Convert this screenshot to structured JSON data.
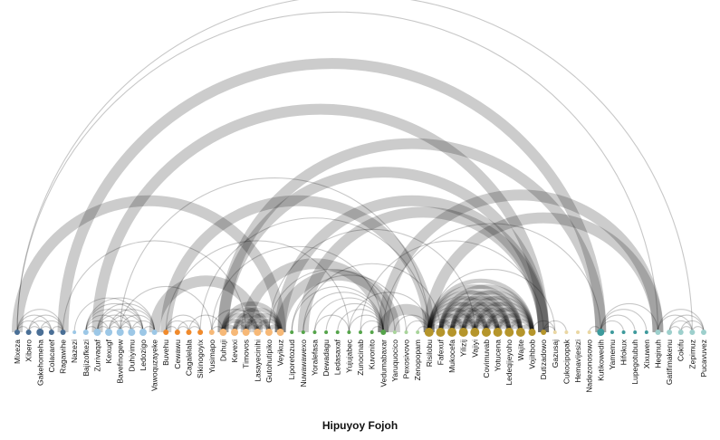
{
  "caption": "Hipuyoy Fojoh",
  "colors": {
    "link": "#000000",
    "groups": [
      "#4a6f96",
      "#9cc7e6",
      "#f08a2c",
      "#f6b877",
      "#55a44a",
      "#a8d49a",
      "#b5952b",
      "#ead7a3",
      "#3d9a9c",
      "#9dcfcc"
    ]
  },
  "nodes": [
    {
      "name": "Mixeza",
      "group": 0,
      "size": 3
    },
    {
      "name": "Xibero",
      "group": 0,
      "size": 3
    },
    {
      "name": "Gakehomeha",
      "group": 0,
      "size": 4
    },
    {
      "name": "Colacaref",
      "group": 0,
      "size": 3
    },
    {
      "name": "Ragawihe",
      "group": 0,
      "size": 3
    },
    {
      "name": "Nazezi",
      "group": 1,
      "size": 2
    },
    {
      "name": "Bajizofkezi",
      "group": 1,
      "size": 3
    },
    {
      "name": "Zurivaqaf",
      "group": 1,
      "size": 4
    },
    {
      "name": "Kexugf",
      "group": 1,
      "size": 4
    },
    {
      "name": "Bavefinogew",
      "group": 1,
      "size": 4
    },
    {
      "name": "Duhiyimu",
      "group": 1,
      "size": 4
    },
    {
      "name": "Ledozigo",
      "group": 1,
      "size": 4
    },
    {
      "name": "Vawoquzayeke",
      "group": 1,
      "size": 3
    },
    {
      "name": "Buvehu",
      "group": 2,
      "size": 3
    },
    {
      "name": "Cewawu",
      "group": 2,
      "size": 3
    },
    {
      "name": "Cagalelala",
      "group": 2,
      "size": 3
    },
    {
      "name": "Sikinogoyix",
      "group": 2,
      "size": 3
    },
    {
      "name": "Yusimapo",
      "group": 3,
      "size": 3
    },
    {
      "name": "Duhuji",
      "group": 3,
      "size": 4
    },
    {
      "name": "Kevexi",
      "group": 3,
      "size": 4
    },
    {
      "name": "Timovos",
      "group": 3,
      "size": 4
    },
    {
      "name": "Lasayecinihi",
      "group": 3,
      "size": 4
    },
    {
      "name": "Gutohutipiko",
      "group": 3,
      "size": 4
    },
    {
      "name": "Veyikuz",
      "group": 3,
      "size": 4
    },
    {
      "name": "Liporetozud",
      "group": 4,
      "size": 2
    },
    {
      "name": "Nuwawawexo",
      "group": 4,
      "size": 2
    },
    {
      "name": "Yoralefasa",
      "group": 4,
      "size": 2
    },
    {
      "name": "Dewadagu",
      "group": 4,
      "size": 2
    },
    {
      "name": "Ledasaxaf",
      "group": 4,
      "size": 2
    },
    {
      "name": "Yujujabec",
      "group": 4,
      "size": 2
    },
    {
      "name": "Zunocinab",
      "group": 4,
      "size": 2
    },
    {
      "name": "Kuvonito",
      "group": 4,
      "size": 2
    },
    {
      "name": "Vedumabaxar",
      "group": 4,
      "size": 3
    },
    {
      "name": "Yaruquocico",
      "group": 5,
      "size": 2
    },
    {
      "name": "Pexosivovo",
      "group": 5,
      "size": 2
    },
    {
      "name": "Zenopopam",
      "group": 5,
      "size": 2
    },
    {
      "name": "Risilobu",
      "group": 6,
      "size": 5
    },
    {
      "name": "Fafexuf",
      "group": 6,
      "size": 5
    },
    {
      "name": "Mukocefa",
      "group": 6,
      "size": 5
    },
    {
      "name": "Yilizij",
      "group": 6,
      "size": 5
    },
    {
      "name": "Vajiyi",
      "group": 6,
      "size": 5
    },
    {
      "name": "Covimuvab",
      "group": 6,
      "size": 5
    },
    {
      "name": "Yotucena",
      "group": 6,
      "size": 5
    },
    {
      "name": "Ledeqijeyoho",
      "group": 6,
      "size": 5
    },
    {
      "name": "Wajite",
      "group": 6,
      "size": 5
    },
    {
      "name": "Vojihbob",
      "group": 6,
      "size": 4
    },
    {
      "name": "Dutizadowo",
      "group": 6,
      "size": 3
    },
    {
      "name": "Gazusaj",
      "group": 7,
      "size": 2
    },
    {
      "name": "Cukocipopak",
      "group": 7,
      "size": 2
    },
    {
      "name": "Hemavijesizi",
      "group": 7,
      "size": 2
    },
    {
      "name": "Nadezonosowo",
      "group": 7,
      "size": 2
    },
    {
      "name": "Kutikowedih",
      "group": 8,
      "size": 4
    },
    {
      "name": "Yamemu",
      "group": 8,
      "size": 2
    },
    {
      "name": "Hifokux",
      "group": 8,
      "size": 2
    },
    {
      "name": "Lupegotubuh",
      "group": 8,
      "size": 2
    },
    {
      "name": "Xixuwen",
      "group": 8,
      "size": 2
    },
    {
      "name": "Heqinuh",
      "group": 9,
      "size": 3
    },
    {
      "name": "Gatifimakenu",
      "group": 9,
      "size": 3
    },
    {
      "name": "Cokifu",
      "group": 9,
      "size": 3
    },
    {
      "name": "Zepimuz",
      "group": 9,
      "size": 3
    },
    {
      "name": "Pucavuvez",
      "group": 9,
      "size": 3
    }
  ],
  "links": [
    {
      "source": 0,
      "target": 1,
      "value": 1
    },
    {
      "source": 0,
      "target": 2,
      "value": 1
    },
    {
      "source": 0,
      "target": 3,
      "value": 1
    },
    {
      "source": 0,
      "target": 4,
      "value": 1
    },
    {
      "source": 1,
      "target": 2,
      "value": 1
    },
    {
      "source": 1,
      "target": 3,
      "value": 1
    },
    {
      "source": 1,
      "target": 4,
      "value": 1
    },
    {
      "source": 2,
      "target": 3,
      "value": 1
    },
    {
      "source": 2,
      "target": 4,
      "value": 1
    },
    {
      "source": 3,
      "target": 4,
      "value": 1
    },
    {
      "source": 6,
      "target": 7,
      "value": 1
    },
    {
      "source": 6,
      "target": 8,
      "value": 1
    },
    {
      "source": 6,
      "target": 9,
      "value": 1
    },
    {
      "source": 6,
      "target": 10,
      "value": 1
    },
    {
      "source": 6,
      "target": 11,
      "value": 1
    },
    {
      "source": 6,
      "target": 12,
      "value": 1
    },
    {
      "source": 7,
      "target": 8,
      "value": 1
    },
    {
      "source": 7,
      "target": 9,
      "value": 1
    },
    {
      "source": 7,
      "target": 10,
      "value": 1
    },
    {
      "source": 7,
      "target": 11,
      "value": 1
    },
    {
      "source": 7,
      "target": 12,
      "value": 1
    },
    {
      "source": 8,
      "target": 9,
      "value": 1
    },
    {
      "source": 8,
      "target": 10,
      "value": 1
    },
    {
      "source": 8,
      "target": 11,
      "value": 1
    },
    {
      "source": 8,
      "target": 12,
      "value": 1
    },
    {
      "source": 9,
      "target": 10,
      "value": 1
    },
    {
      "source": 9,
      "target": 11,
      "value": 1
    },
    {
      "source": 9,
      "target": 12,
      "value": 1
    },
    {
      "source": 10,
      "target": 11,
      "value": 1
    },
    {
      "source": 10,
      "target": 12,
      "value": 1
    },
    {
      "source": 11,
      "target": 12,
      "value": 1
    },
    {
      "source": 5,
      "target": 11,
      "value": 1
    },
    {
      "source": 13,
      "target": 14,
      "value": 1
    },
    {
      "source": 13,
      "target": 15,
      "value": 1
    },
    {
      "source": 13,
      "target": 16,
      "value": 1
    },
    {
      "source": 14,
      "target": 15,
      "value": 1
    },
    {
      "source": 14,
      "target": 16,
      "value": 1
    },
    {
      "source": 15,
      "target": 16,
      "value": 1
    },
    {
      "source": 18,
      "target": 19,
      "value": 2
    },
    {
      "source": 18,
      "target": 20,
      "value": 2
    },
    {
      "source": 18,
      "target": 21,
      "value": 2
    },
    {
      "source": 18,
      "target": 22,
      "value": 2
    },
    {
      "source": 18,
      "target": 23,
      "value": 2
    },
    {
      "source": 19,
      "target": 20,
      "value": 2
    },
    {
      "source": 19,
      "target": 21,
      "value": 2
    },
    {
      "source": 19,
      "target": 22,
      "value": 2
    },
    {
      "source": 19,
      "target": 23,
      "value": 2
    },
    {
      "source": 20,
      "target": 21,
      "value": 2
    },
    {
      "source": 20,
      "target": 22,
      "value": 2
    },
    {
      "source": 20,
      "target": 23,
      "value": 2
    },
    {
      "source": 21,
      "target": 22,
      "value": 2
    },
    {
      "source": 21,
      "target": 23,
      "value": 2
    },
    {
      "source": 22,
      "target": 23,
      "value": 2
    },
    {
      "source": 17,
      "target": 18,
      "value": 1
    },
    {
      "source": 17,
      "target": 21,
      "value": 1
    },
    {
      "source": 24,
      "target": 32,
      "value": 1
    },
    {
      "source": 25,
      "target": 32,
      "value": 1
    },
    {
      "source": 26,
      "target": 32,
      "value": 1
    },
    {
      "source": 27,
      "target": 32,
      "value": 1
    },
    {
      "source": 28,
      "target": 32,
      "value": 1
    },
    {
      "source": 29,
      "target": 32,
      "value": 1
    },
    {
      "source": 30,
      "target": 32,
      "value": 1
    },
    {
      "source": 31,
      "target": 32,
      "value": 1
    },
    {
      "source": 26,
      "target": 29,
      "value": 1
    },
    {
      "source": 32,
      "target": 36,
      "value": 5
    },
    {
      "source": 33,
      "target": 36,
      "value": 1
    },
    {
      "source": 34,
      "target": 36,
      "value": 1
    },
    {
      "source": 35,
      "target": 36,
      "value": 1
    },
    {
      "source": 36,
      "target": 37,
      "value": 2
    },
    {
      "source": 36,
      "target": 38,
      "value": 2
    },
    {
      "source": 36,
      "target": 39,
      "value": 2
    },
    {
      "source": 36,
      "target": 40,
      "value": 2
    },
    {
      "source": 36,
      "target": 41,
      "value": 2
    },
    {
      "source": 36,
      "target": 42,
      "value": 2
    },
    {
      "source": 36,
      "target": 43,
      "value": 2
    },
    {
      "source": 36,
      "target": 44,
      "value": 2
    },
    {
      "source": 36,
      "target": 45,
      "value": 2
    },
    {
      "source": 37,
      "target": 38,
      "value": 2
    },
    {
      "source": 37,
      "target": 39,
      "value": 2
    },
    {
      "source": 37,
      "target": 40,
      "value": 2
    },
    {
      "source": 37,
      "target": 41,
      "value": 2
    },
    {
      "source": 37,
      "target": 42,
      "value": 2
    },
    {
      "source": 37,
      "target": 43,
      "value": 2
    },
    {
      "source": 37,
      "target": 44,
      "value": 2
    },
    {
      "source": 37,
      "target": 45,
      "value": 2
    },
    {
      "source": 38,
      "target": 39,
      "value": 2
    },
    {
      "source": 38,
      "target": 40,
      "value": 2
    },
    {
      "source": 38,
      "target": 41,
      "value": 2
    },
    {
      "source": 38,
      "target": 42,
      "value": 2
    },
    {
      "source": 38,
      "target": 43,
      "value": 2
    },
    {
      "source": 38,
      "target": 44,
      "value": 2
    },
    {
      "source": 38,
      "target": 45,
      "value": 2
    },
    {
      "source": 39,
      "target": 40,
      "value": 2
    },
    {
      "source": 39,
      "target": 41,
      "value": 2
    },
    {
      "source": 39,
      "target": 42,
      "value": 2
    },
    {
      "source": 39,
      "target": 43,
      "value": 2
    },
    {
      "source": 39,
      "target": 44,
      "value": 2
    },
    {
      "source": 39,
      "target": 45,
      "value": 2
    },
    {
      "source": 40,
      "target": 41,
      "value": 2
    },
    {
      "source": 40,
      "target": 42,
      "value": 2
    },
    {
      "source": 40,
      "target": 43,
      "value": 2
    },
    {
      "source": 40,
      "target": 44,
      "value": 2
    },
    {
      "source": 40,
      "target": 45,
      "value": 2
    },
    {
      "source": 41,
      "target": 42,
      "value": 2
    },
    {
      "source": 41,
      "target": 43,
      "value": 2
    },
    {
      "source": 41,
      "target": 44,
      "value": 2
    },
    {
      "source": 41,
      "target": 45,
      "value": 2
    },
    {
      "source": 42,
      "target": 43,
      "value": 2
    },
    {
      "source": 42,
      "target": 44,
      "value": 2
    },
    {
      "source": 42,
      "target": 45,
      "value": 2
    },
    {
      "source": 43,
      "target": 44,
      "value": 2
    },
    {
      "source": 43,
      "target": 45,
      "value": 2
    },
    {
      "source": 44,
      "target": 45,
      "value": 2
    },
    {
      "source": 46,
      "target": 48,
      "value": 1
    },
    {
      "source": 46,
      "target": 47,
      "value": 1
    },
    {
      "source": 45,
      "target": 47,
      "value": 1
    },
    {
      "source": 51,
      "target": 56,
      "value": 1
    },
    {
      "source": 51,
      "target": 53,
      "value": 1
    },
    {
      "source": 51,
      "target": 54,
      "value": 1
    },
    {
      "source": 51,
      "target": 55,
      "value": 1
    },
    {
      "source": 50,
      "target": 51,
      "value": 1
    },
    {
      "source": 57,
      "target": 58,
      "value": 1
    },
    {
      "source": 57,
      "target": 59,
      "value": 1
    },
    {
      "source": 57,
      "target": 60,
      "value": 1
    },
    {
      "source": 58,
      "target": 59,
      "value": 1
    },
    {
      "source": 58,
      "target": 60,
      "value": 1
    },
    {
      "source": 59,
      "target": 60,
      "value": 1
    },
    {
      "source": 56,
      "target": 60,
      "value": 1
    },
    {
      "source": 56,
      "target": 59,
      "value": 1
    },
    {
      "source": 0,
      "target": 59,
      "value": 1
    },
    {
      "source": 0,
      "target": 56,
      "value": 1
    },
    {
      "source": 4,
      "target": 51,
      "value": 5
    },
    {
      "source": 0,
      "target": 23,
      "value": 5
    },
    {
      "source": 7,
      "target": 46,
      "value": 5
    },
    {
      "source": 13,
      "target": 36,
      "value": 5
    },
    {
      "source": 12,
      "target": 21,
      "value": 5
    },
    {
      "source": 18,
      "target": 46,
      "value": 5
    },
    {
      "source": 18,
      "target": 51,
      "value": 5
    },
    {
      "source": 23,
      "target": 46,
      "value": 5
    },
    {
      "source": 25,
      "target": 46,
      "value": 5
    },
    {
      "source": 32,
      "target": 56,
      "value": 5
    },
    {
      "source": 36,
      "target": 56,
      "value": 5
    },
    {
      "source": 20,
      "target": 32,
      "value": 5
    },
    {
      "source": 23,
      "target": 33,
      "value": 5
    },
    {
      "source": 9,
      "target": 17,
      "value": 1
    },
    {
      "source": 4,
      "target": 20,
      "value": 1
    },
    {
      "source": 15,
      "target": 18,
      "value": 1
    },
    {
      "source": 9,
      "target": 36,
      "value": 1
    },
    {
      "source": 22,
      "target": 40,
      "value": 1
    },
    {
      "source": 22,
      "target": 33,
      "value": 1
    },
    {
      "source": 25,
      "target": 37,
      "value": 1
    },
    {
      "source": 32,
      "target": 51,
      "value": 1
    },
    {
      "source": 30,
      "target": 46,
      "value": 1
    },
    {
      "source": 29,
      "target": 36,
      "value": 1
    },
    {
      "source": 24,
      "target": 34,
      "value": 1
    },
    {
      "source": 36,
      "target": 47,
      "value": 1
    },
    {
      "source": 17,
      "target": 32,
      "value": 1
    },
    {
      "source": 16,
      "target": 36,
      "value": 1
    },
    {
      "source": 13,
      "target": 29,
      "value": 1
    }
  ]
}
